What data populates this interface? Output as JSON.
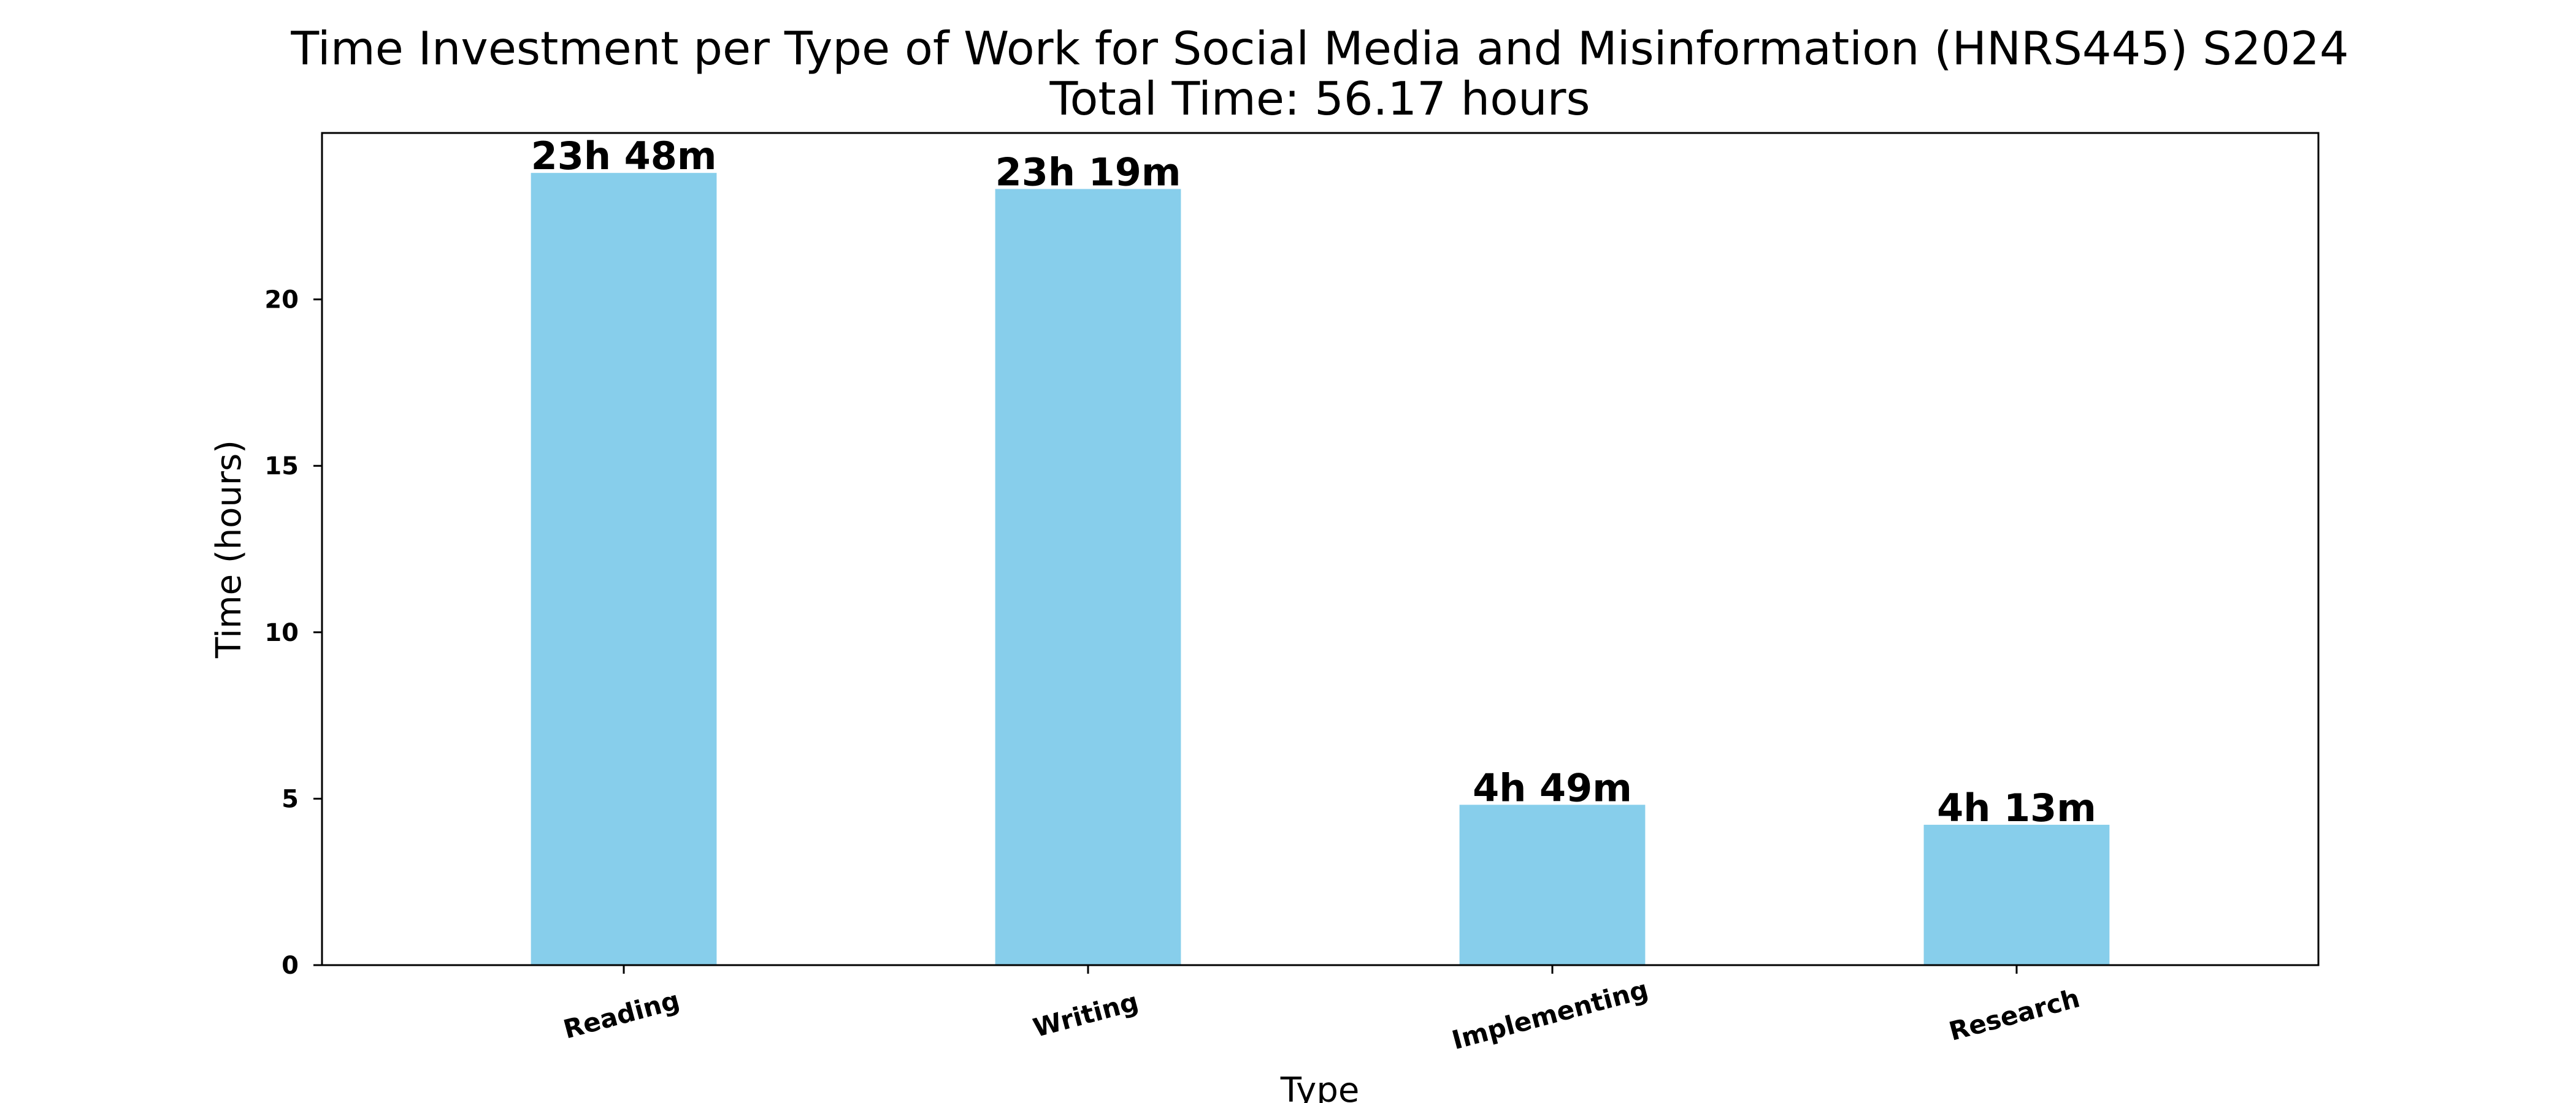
{
  "chart_data": {
    "type": "bar",
    "title": "Time Investment per Type of Work for Social Media and Misinformation (HNRS445) S2024",
    "subtitle": "Total Time: 56.17 hours",
    "xlabel": "Type",
    "ylabel": "Time (hours)",
    "categories": [
      "Reading",
      "Writing",
      "Implementing",
      "Research"
    ],
    "values": [
      23.8,
      23.317,
      4.817,
      4.217
    ],
    "value_labels": [
      "23h 48m",
      "23h 19m",
      "4h 49m",
      "4h 13m"
    ],
    "y_ticks": [
      0,
      5,
      10,
      15,
      20
    ],
    "ylim": [
      0,
      25.0
    ],
    "grid": false,
    "bar_color": "#87ceeb"
  }
}
